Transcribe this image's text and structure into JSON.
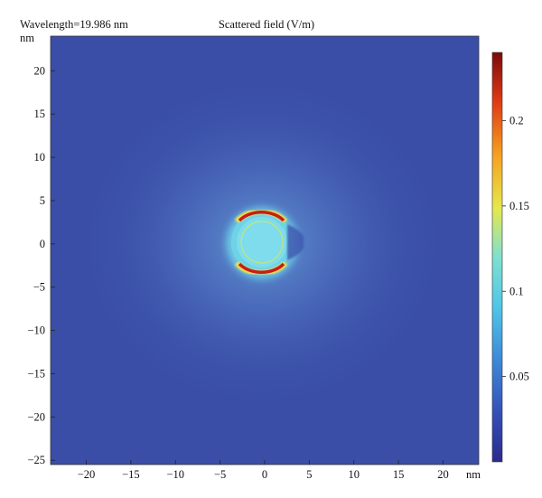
{
  "header": {
    "wavelength_text": "Wavelength=19.986 nm",
    "title": "Scattered field (V/m)"
  },
  "chart_data": {
    "type": "heatmap",
    "title": "Scattered field (V/m)",
    "subtitle": "Wavelength=19.986 nm",
    "xlabel": "nm",
    "ylabel": "nm",
    "xlim": [
      -24,
      24
    ],
    "ylim": [
      -25.5,
      24
    ],
    "x_ticks": [
      -20,
      -15,
      -10,
      -5,
      0,
      5,
      10,
      15,
      20
    ],
    "y_ticks": [
      -25,
      -20,
      -15,
      -10,
      -5,
      0,
      5,
      10,
      15,
      20
    ],
    "colorbar": {
      "min": 0.0,
      "max": 0.24,
      "ticks": [
        0.05,
        0.1,
        0.15,
        0.2
      ],
      "colormap": "rainbow (dark blue to dark red)"
    },
    "field_features": [
      {
        "name": "particle core",
        "shape": "disk",
        "center_nm": [
          0,
          0
        ],
        "radius_nm": 3.5,
        "value": 0.08
      },
      {
        "name": "outer shell",
        "shape": "annulus (open on +x side)",
        "center_nm": [
          0,
          0
        ],
        "inner_radius_nm": 3.5,
        "outer_radius_nm": 6,
        "value": 0.08
      },
      {
        "name": "upper hot arc",
        "center_nm": [
          0,
          3.6
        ],
        "value": 0.23
      },
      {
        "name": "lower hot arc",
        "center_nm": [
          0,
          -3.6
        ],
        "value": 0.23
      },
      {
        "name": "inner ring",
        "center_nm": [
          0,
          0
        ],
        "radius_nm": 2.6,
        "value": 0.14
      },
      {
        "name": "background",
        "value": 0.025
      }
    ],
    "grid": false,
    "legend": "colorbar at right"
  },
  "colors": {
    "background": "#3a4ea8",
    "glow": "#5a86cc",
    "cyan": "#5fd4e6",
    "red": "#c81e14",
    "yellow": "#f5e04a"
  }
}
